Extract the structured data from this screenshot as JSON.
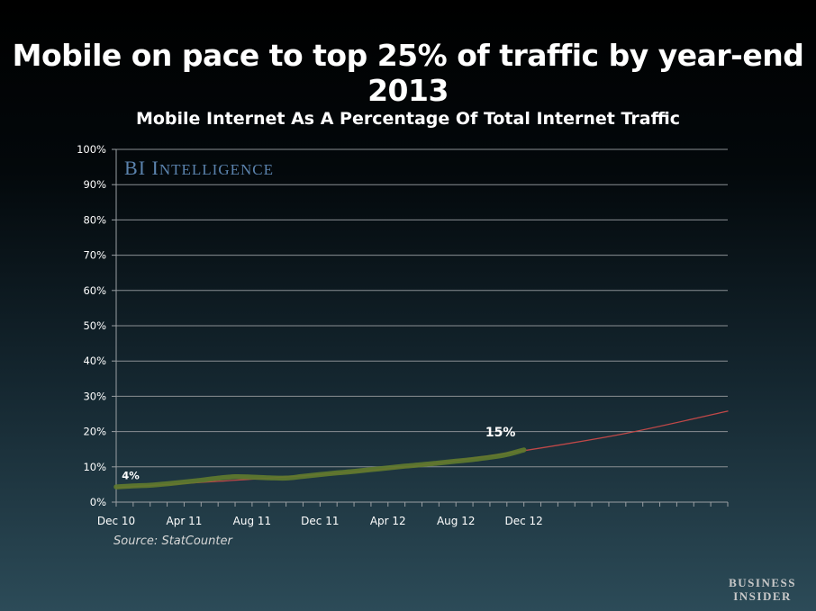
{
  "slide": {
    "title": "Mobile on pace to top 25% of traffic by year-end 2013",
    "source": "Source: StatCounter",
    "watermark": "BI Intelligence",
    "publisher_line1": "Business",
    "publisher_line2": "Insider"
  },
  "chart_data": {
    "type": "line",
    "title": "Mobile Internet As A Percentage Of Total Internet Traffic",
    "xlabel": "",
    "ylabel": "",
    "x_tick_labels": [
      "Dec 10",
      "Apr 11",
      "Aug 11",
      "Dec 11",
      "Apr 12",
      "Aug 12",
      "Dec 12"
    ],
    "y_tick_labels": [
      "0%",
      "10%",
      "20%",
      "30%",
      "40%",
      "50%",
      "60%",
      "70%",
      "80%",
      "90%",
      "100%"
    ],
    "ylim": [
      0,
      100
    ],
    "x_months_range": [
      "Dec 10",
      "Dec 13"
    ],
    "grid": "horizontal",
    "series": [
      {
        "style": "actual",
        "color": "#5f7a2e",
        "x": [
          "Dec 10",
          "Jan 11",
          "Feb 11",
          "Mar 11",
          "Apr 11",
          "May 11",
          "Jun 11",
          "Jul 11",
          "Aug 11",
          "Sep 11",
          "Oct 11",
          "Nov 11",
          "Dec 11",
          "Jan 12",
          "Feb 12",
          "Mar 12",
          "Apr 12",
          "May 12",
          "Jun 12",
          "Jul 12",
          "Aug 12",
          "Sep 12",
          "Oct 12",
          "Nov 12",
          "Dec 12"
        ],
        "values": [
          4.3,
          4.6,
          4.8,
          5.2,
          5.7,
          6.2,
          6.8,
          7.2,
          7.1,
          6.9,
          6.8,
          7.3,
          7.8,
          8.3,
          8.7,
          9.2,
          9.7,
          10.2,
          10.6,
          11.1,
          11.6,
          12.1,
          12.7,
          13.5,
          14.8
        ]
      },
      {
        "style": "trend",
        "color": "#c04848",
        "x": [
          "Dec 10",
          "Jun 11",
          "Dec 11",
          "Jun 12",
          "Dec 12",
          "Jun 13",
          "Dec 13"
        ],
        "values": [
          4.1,
          5.9,
          7.8,
          10.5,
          14.6,
          19.5,
          25.8
        ]
      }
    ],
    "annotations": [
      {
        "text": "4%",
        "x": "Dec 10",
        "y": 4
      },
      {
        "text": "15%",
        "x": "Dec 12",
        "y": 15
      }
    ]
  }
}
